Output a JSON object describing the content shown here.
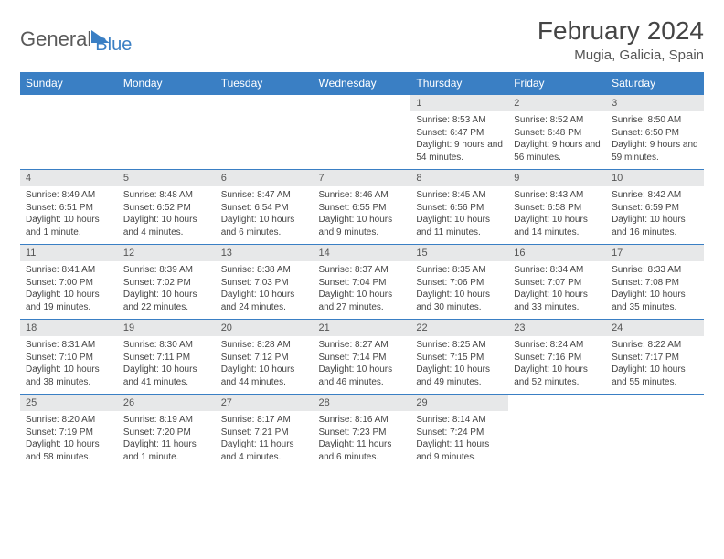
{
  "brand": {
    "part1": "General",
    "part2": "Blue"
  },
  "title": "February 2024",
  "location": "Mugia, Galicia, Spain",
  "colors": {
    "header_bg": "#3a7fc4",
    "daynum_bg": "#e7e8e9",
    "text": "#444444"
  },
  "weekdays": [
    "Sunday",
    "Monday",
    "Tuesday",
    "Wednesday",
    "Thursday",
    "Friday",
    "Saturday"
  ],
  "weeks": [
    {
      "days": [
        null,
        null,
        null,
        null,
        {
          "num": "1",
          "sunrise": "Sunrise: 8:53 AM",
          "sunset": "Sunset: 6:47 PM",
          "daylight": "Daylight: 9 hours and 54 minutes."
        },
        {
          "num": "2",
          "sunrise": "Sunrise: 8:52 AM",
          "sunset": "Sunset: 6:48 PM",
          "daylight": "Daylight: 9 hours and 56 minutes."
        },
        {
          "num": "3",
          "sunrise": "Sunrise: 8:50 AM",
          "sunset": "Sunset: 6:50 PM",
          "daylight": "Daylight: 9 hours and 59 minutes."
        }
      ]
    },
    {
      "days": [
        {
          "num": "4",
          "sunrise": "Sunrise: 8:49 AM",
          "sunset": "Sunset: 6:51 PM",
          "daylight": "Daylight: 10 hours and 1 minute."
        },
        {
          "num": "5",
          "sunrise": "Sunrise: 8:48 AM",
          "sunset": "Sunset: 6:52 PM",
          "daylight": "Daylight: 10 hours and 4 minutes."
        },
        {
          "num": "6",
          "sunrise": "Sunrise: 8:47 AM",
          "sunset": "Sunset: 6:54 PM",
          "daylight": "Daylight: 10 hours and 6 minutes."
        },
        {
          "num": "7",
          "sunrise": "Sunrise: 8:46 AM",
          "sunset": "Sunset: 6:55 PM",
          "daylight": "Daylight: 10 hours and 9 minutes."
        },
        {
          "num": "8",
          "sunrise": "Sunrise: 8:45 AM",
          "sunset": "Sunset: 6:56 PM",
          "daylight": "Daylight: 10 hours and 11 minutes."
        },
        {
          "num": "9",
          "sunrise": "Sunrise: 8:43 AM",
          "sunset": "Sunset: 6:58 PM",
          "daylight": "Daylight: 10 hours and 14 minutes."
        },
        {
          "num": "10",
          "sunrise": "Sunrise: 8:42 AM",
          "sunset": "Sunset: 6:59 PM",
          "daylight": "Daylight: 10 hours and 16 minutes."
        }
      ]
    },
    {
      "days": [
        {
          "num": "11",
          "sunrise": "Sunrise: 8:41 AM",
          "sunset": "Sunset: 7:00 PM",
          "daylight": "Daylight: 10 hours and 19 minutes."
        },
        {
          "num": "12",
          "sunrise": "Sunrise: 8:39 AM",
          "sunset": "Sunset: 7:02 PM",
          "daylight": "Daylight: 10 hours and 22 minutes."
        },
        {
          "num": "13",
          "sunrise": "Sunrise: 8:38 AM",
          "sunset": "Sunset: 7:03 PM",
          "daylight": "Daylight: 10 hours and 24 minutes."
        },
        {
          "num": "14",
          "sunrise": "Sunrise: 8:37 AM",
          "sunset": "Sunset: 7:04 PM",
          "daylight": "Daylight: 10 hours and 27 minutes."
        },
        {
          "num": "15",
          "sunrise": "Sunrise: 8:35 AM",
          "sunset": "Sunset: 7:06 PM",
          "daylight": "Daylight: 10 hours and 30 minutes."
        },
        {
          "num": "16",
          "sunrise": "Sunrise: 8:34 AM",
          "sunset": "Sunset: 7:07 PM",
          "daylight": "Daylight: 10 hours and 33 minutes."
        },
        {
          "num": "17",
          "sunrise": "Sunrise: 8:33 AM",
          "sunset": "Sunset: 7:08 PM",
          "daylight": "Daylight: 10 hours and 35 minutes."
        }
      ]
    },
    {
      "days": [
        {
          "num": "18",
          "sunrise": "Sunrise: 8:31 AM",
          "sunset": "Sunset: 7:10 PM",
          "daylight": "Daylight: 10 hours and 38 minutes."
        },
        {
          "num": "19",
          "sunrise": "Sunrise: 8:30 AM",
          "sunset": "Sunset: 7:11 PM",
          "daylight": "Daylight: 10 hours and 41 minutes."
        },
        {
          "num": "20",
          "sunrise": "Sunrise: 8:28 AM",
          "sunset": "Sunset: 7:12 PM",
          "daylight": "Daylight: 10 hours and 44 minutes."
        },
        {
          "num": "21",
          "sunrise": "Sunrise: 8:27 AM",
          "sunset": "Sunset: 7:14 PM",
          "daylight": "Daylight: 10 hours and 46 minutes."
        },
        {
          "num": "22",
          "sunrise": "Sunrise: 8:25 AM",
          "sunset": "Sunset: 7:15 PM",
          "daylight": "Daylight: 10 hours and 49 minutes."
        },
        {
          "num": "23",
          "sunrise": "Sunrise: 8:24 AM",
          "sunset": "Sunset: 7:16 PM",
          "daylight": "Daylight: 10 hours and 52 minutes."
        },
        {
          "num": "24",
          "sunrise": "Sunrise: 8:22 AM",
          "sunset": "Sunset: 7:17 PM",
          "daylight": "Daylight: 10 hours and 55 minutes."
        }
      ]
    },
    {
      "days": [
        {
          "num": "25",
          "sunrise": "Sunrise: 8:20 AM",
          "sunset": "Sunset: 7:19 PM",
          "daylight": "Daylight: 10 hours and 58 minutes."
        },
        {
          "num": "26",
          "sunrise": "Sunrise: 8:19 AM",
          "sunset": "Sunset: 7:20 PM",
          "daylight": "Daylight: 11 hours and 1 minute."
        },
        {
          "num": "27",
          "sunrise": "Sunrise: 8:17 AM",
          "sunset": "Sunset: 7:21 PM",
          "daylight": "Daylight: 11 hours and 4 minutes."
        },
        {
          "num": "28",
          "sunrise": "Sunrise: 8:16 AM",
          "sunset": "Sunset: 7:23 PM",
          "daylight": "Daylight: 11 hours and 6 minutes."
        },
        {
          "num": "29",
          "sunrise": "Sunrise: 8:14 AM",
          "sunset": "Sunset: 7:24 PM",
          "daylight": "Daylight: 11 hours and 9 minutes."
        },
        null,
        null
      ]
    }
  ]
}
